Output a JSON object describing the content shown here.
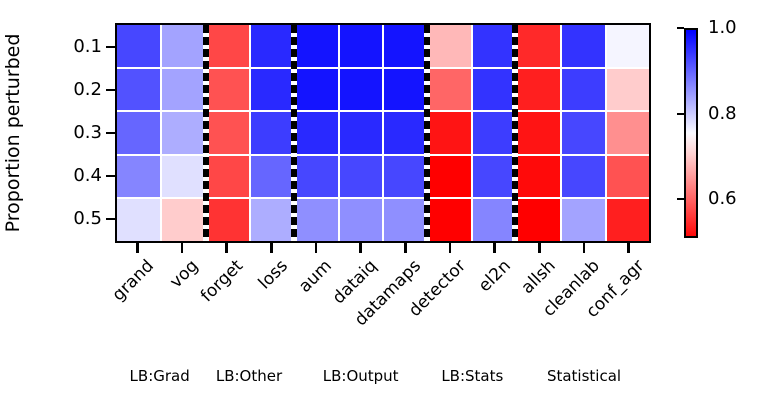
{
  "chart_data": {
    "type": "heatmap",
    "ylabel": "Proportion perturbed",
    "rows": [
      "0.1",
      "0.2",
      "0.3",
      "0.4",
      "0.5"
    ],
    "columns": [
      "grand",
      "vog",
      "forget",
      "loss",
      "aum",
      "dataiq",
      "datamaps",
      "detector",
      "el2n",
      "allsh",
      "cleanlab",
      "conf_agr"
    ],
    "groups": [
      {
        "label": "LB:Grad",
        "cols": 2
      },
      {
        "label": "LB:Other",
        "cols": 2
      },
      {
        "label": "LB:Output",
        "cols": 3
      },
      {
        "label": "LB:Stats",
        "cols": 2
      },
      {
        "label": "Statistical",
        "cols": 3
      }
    ],
    "values": [
      [
        0.93,
        0.84,
        0.57,
        0.96,
        0.98,
        0.98,
        0.98,
        0.68,
        0.95,
        0.54,
        0.95,
        0.76
      ],
      [
        0.92,
        0.84,
        0.58,
        0.96,
        0.98,
        0.98,
        0.98,
        0.6,
        0.95,
        0.53,
        0.94,
        0.7
      ],
      [
        0.9,
        0.83,
        0.58,
        0.94,
        0.96,
        0.96,
        0.96,
        0.52,
        0.94,
        0.52,
        0.93,
        0.64
      ],
      [
        0.87,
        0.78,
        0.57,
        0.9,
        0.93,
        0.93,
        0.93,
        0.5,
        0.93,
        0.51,
        0.93,
        0.58
      ],
      [
        0.78,
        0.7,
        0.55,
        0.83,
        0.86,
        0.86,
        0.86,
        0.5,
        0.87,
        0.5,
        0.84,
        0.53
      ]
    ],
    "colormap": {
      "name": "bwr_r",
      "vmin": 0.5,
      "vmax": 1.0,
      "midpoint": 0.75,
      "low_color": "#ff0000",
      "mid_color": "#ffffff",
      "high_color": "#0000ff"
    },
    "colorbar": {
      "ticks": [
        {
          "label": "1.0",
          "value": 1.0
        },
        {
          "label": "0.8",
          "value": 0.8
        },
        {
          "label": "0.6",
          "value": 0.6
        }
      ],
      "display_min": 0.51,
      "display_max": 1.0
    },
    "grid_line_color": "#ffffff",
    "separator_color": "#000000"
  }
}
